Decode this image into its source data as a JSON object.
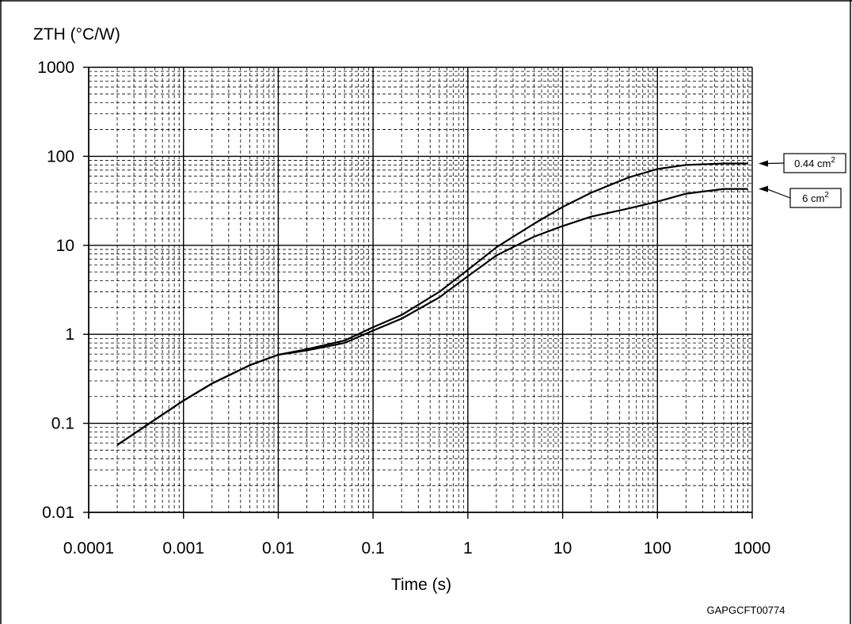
{
  "figure": {
    "code": "GAPGCFT00774"
  },
  "chart_data": {
    "type": "line",
    "x_scale": "log",
    "y_scale": "log",
    "xlabel": "Time (s)",
    "ylabel": "ZTH (°C/W)",
    "xlim": [
      0.0001,
      1000
    ],
    "ylim": [
      0.01,
      1000
    ],
    "x_ticks": [
      "0.0001",
      "0.001",
      "0.01",
      "0.1",
      "1",
      "10",
      "100",
      "1000"
    ],
    "y_ticks": [
      "0.01",
      "0.1",
      "1",
      "10",
      "100",
      "1000"
    ],
    "grid": true,
    "series": [
      {
        "name": "0.44 cm",
        "name_superscript": "2",
        "x": [
          0.0002,
          0.0005,
          0.001,
          0.002,
          0.005,
          0.01,
          0.02,
          0.05,
          0.1,
          0.2,
          0.5,
          1,
          2,
          5,
          10,
          20,
          50,
          100,
          200,
          500,
          900
        ],
        "y": [
          0.057,
          0.11,
          0.18,
          0.28,
          0.45,
          0.59,
          0.68,
          0.85,
          1.2,
          1.65,
          3.0,
          5.3,
          9.5,
          17.5,
          27,
          39,
          58,
          72,
          80,
          83,
          83
        ]
      },
      {
        "name": "6 cm",
        "name_superscript": "2",
        "x": [
          0.0002,
          0.0005,
          0.001,
          0.002,
          0.005,
          0.01,
          0.02,
          0.05,
          0.1,
          0.2,
          0.5,
          1,
          2,
          5,
          10,
          20,
          50,
          100,
          200,
          500,
          900
        ],
        "y": [
          0.057,
          0.11,
          0.18,
          0.28,
          0.45,
          0.59,
          0.66,
          0.8,
          1.1,
          1.5,
          2.6,
          4.5,
          7.7,
          12.5,
          16.5,
          21,
          26,
          31,
          38,
          43,
          43
        ]
      }
    ]
  }
}
